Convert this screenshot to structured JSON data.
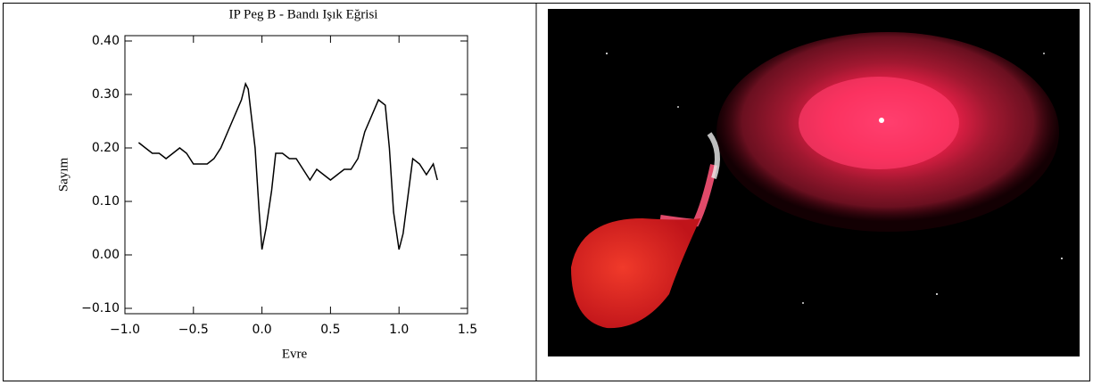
{
  "chart_data": {
    "type": "line",
    "title": "IP Peg B - Bandı Işık Eğrisi",
    "x_label": "Evre",
    "y_label": "Sayım",
    "x": [
      -0.9,
      -0.85,
      -0.8,
      -0.75,
      -0.7,
      -0.65,
      -0.6,
      -0.55,
      -0.5,
      -0.45,
      -0.4,
      -0.35,
      -0.3,
      -0.25,
      -0.2,
      -0.15,
      -0.12,
      -0.1,
      -0.05,
      -0.02,
      0.0,
      0.03,
      0.07,
      0.1,
      0.15,
      0.2,
      0.25,
      0.3,
      0.35,
      0.4,
      0.45,
      0.5,
      0.55,
      0.6,
      0.65,
      0.7,
      0.75,
      0.8,
      0.85,
      0.9,
      0.93,
      0.96,
      1.0,
      1.03,
      1.07,
      1.1,
      1.15,
      1.2,
      1.25,
      1.28
    ],
    "values": [
      0.21,
      0.2,
      0.19,
      0.19,
      0.18,
      0.19,
      0.2,
      0.19,
      0.17,
      0.17,
      0.17,
      0.18,
      0.2,
      0.23,
      0.26,
      0.29,
      0.32,
      0.31,
      0.2,
      0.08,
      0.01,
      0.05,
      0.12,
      0.19,
      0.19,
      0.18,
      0.18,
      0.16,
      0.14,
      0.16,
      0.15,
      0.14,
      0.15,
      0.16,
      0.16,
      0.18,
      0.23,
      0.26,
      0.29,
      0.28,
      0.2,
      0.08,
      0.01,
      0.04,
      0.12,
      0.18,
      0.17,
      0.15,
      0.17,
      0.14
    ],
    "color": "#000000",
    "xlim": [
      -1.0,
      1.5
    ],
    "ylim": [
      -0.11,
      0.41
    ],
    "xticks": [
      {
        "value": -1.0,
        "label": "−1.0"
      },
      {
        "value": -0.5,
        "label": "−0.5"
      },
      {
        "value": 0.0,
        "label": "0.0"
      },
      {
        "value": 0.5,
        "label": "0.5"
      },
      {
        "value": 1.0,
        "label": "1.0"
      },
      {
        "value": 1.5,
        "label": "1.5"
      }
    ],
    "yticks": [
      {
        "value": -0.1,
        "label": "−0.10"
      },
      {
        "value": 0.0,
        "label": "0.00"
      },
      {
        "value": 0.1,
        "label": "0.10"
      },
      {
        "value": 0.2,
        "label": "0.20"
      },
      {
        "value": 0.3,
        "label": "0.30"
      },
      {
        "value": 0.4,
        "label": "0.40"
      }
    ]
  }
}
